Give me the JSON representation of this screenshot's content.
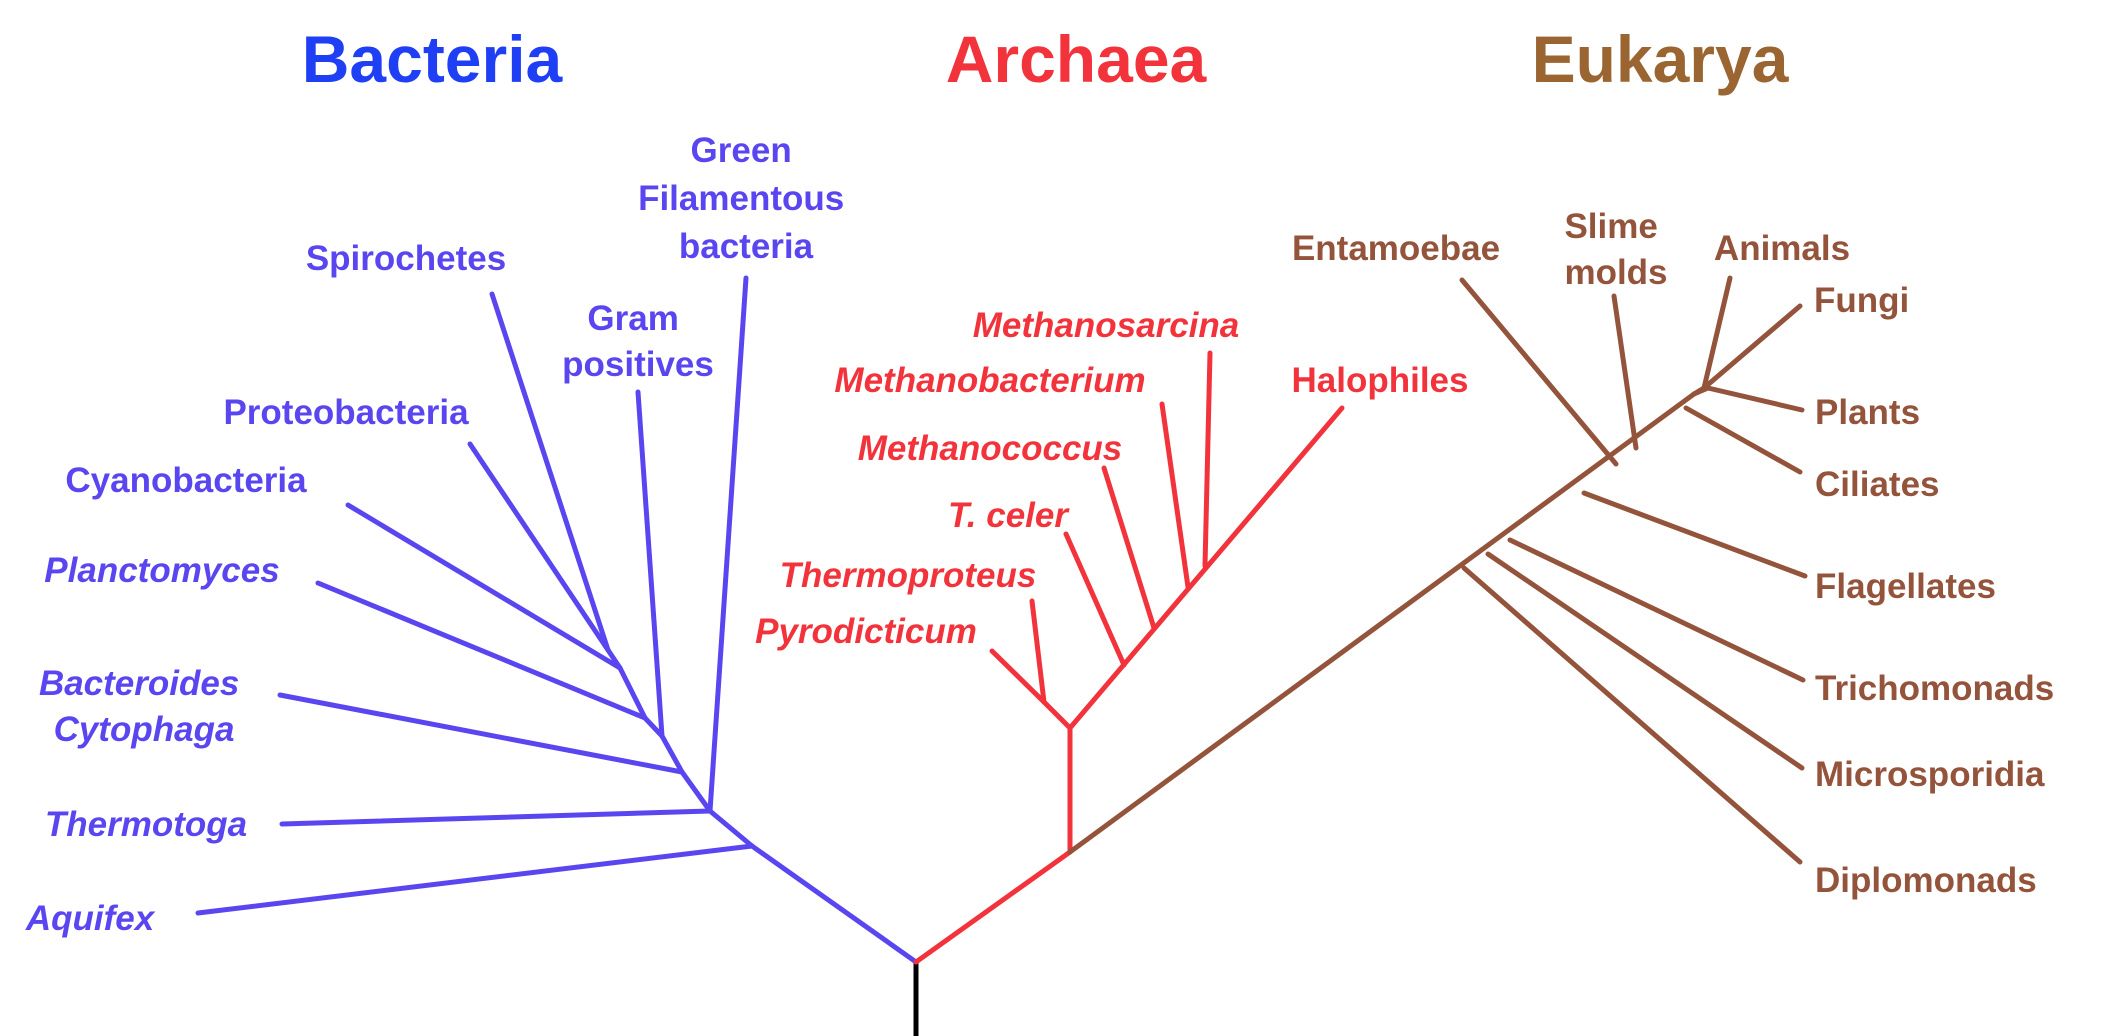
{
  "colors": {
    "bacteria": "#5a46f0",
    "bacteria_title": "#1f3ff5",
    "archaea": "#f2333b",
    "eukarya": "#94543c",
    "eukarya_title": "#9a6531",
    "root": "#000000"
  },
  "domains": {
    "bacteria": "Bacteria",
    "archaea": "Archaea",
    "eukarya": "Eukarya"
  },
  "bacteria": {
    "green_filamentous": [
      "Green",
      "Filamentous",
      "bacteria"
    ],
    "spirochetes": "Spirochetes",
    "gram_positives": [
      "Gram",
      "positives"
    ],
    "proteobacteria": "Proteobacteria",
    "cyanobacteria": "Cyanobacteria",
    "planctomyces": "Planctomyces",
    "bacteroides_cytophaga": [
      "Bacteroides",
      "Cytophaga"
    ],
    "thermotoga": "Thermotoga",
    "aquifex": "Aquifex"
  },
  "archaea": {
    "methanosarcina": "Methanosarcina",
    "methanobacterium": "Methanobacterium",
    "halophiles": "Halophiles",
    "methanococcus": "Methanococcus",
    "t_celer": "T. celer",
    "thermoproteus": "Thermoproteus",
    "pyrodicticum": "Pyrodicticum"
  },
  "eukarya": {
    "entamoebae": "Entamoebae",
    "slime_molds": [
      "Slime",
      "molds"
    ],
    "animals": "Animals",
    "fungi": "Fungi",
    "plants": "Plants",
    "ciliates": "Ciliates",
    "flagellates": "Flagellates",
    "trichomonads": "Trichomonads",
    "microsporidia": "Microsporidia",
    "diplomonads": "Diplomonads"
  }
}
